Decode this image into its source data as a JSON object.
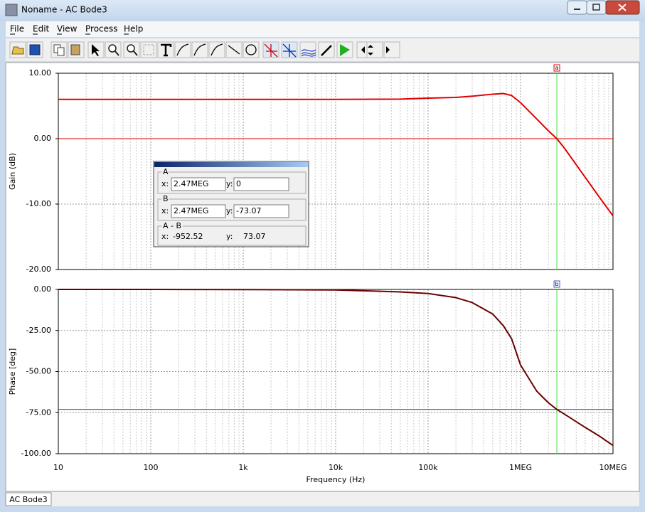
{
  "window": {
    "title": "Noname - AC Bode3"
  },
  "menu": [
    "File",
    "Edit",
    "View",
    "Process",
    "Help"
  ],
  "cursor_panel": {
    "a": {
      "label": "A",
      "x_label": "x:",
      "x": "2.47MEG",
      "y_label": "y:",
      "y": "0"
    },
    "b": {
      "label": "B",
      "x_label": "x:",
      "x": "2.47MEG",
      "y_label": "y:",
      "y": "-73.07"
    },
    "diff": {
      "label": "A - B",
      "x_label": "x:",
      "x": "-952.52",
      "y_label": "y:",
      "y": "73.07"
    }
  },
  "chart_data": [
    {
      "type": "line",
      "ylabel": "Gain (dB)",
      "log_x": true,
      "grid": true,
      "x": [
        10,
        100,
        1000,
        10000,
        50000,
        100000,
        200000,
        300000,
        500000,
        650000,
        800000,
        1000000,
        1500000,
        2000000,
        2470000,
        3000000,
        5000000,
        7000000,
        10000000
      ],
      "series": [
        {
          "color": "#e00000",
          "values": [
            6.0,
            6.0,
            6.0,
            6.0,
            6.05,
            6.2,
            6.3,
            6.5,
            6.8,
            6.9,
            6.6,
            5.5,
            3.0,
            1.2,
            0,
            -1.5,
            -5.9,
            -8.8,
            -11.8
          ]
        }
      ],
      "xlim": [
        10,
        10000000
      ],
      "xticks": [
        10,
        100,
        1000,
        10000,
        100000,
        1000000,
        10000000
      ],
      "ylim": [
        -20,
        10
      ],
      "yticks": [
        {
          "value": 10,
          "label": "10.00"
        },
        {
          "value": 0,
          "label": "0.00"
        },
        {
          "value": -10,
          "label": "-10.00"
        },
        {
          "value": -20,
          "label": "-20.00"
        }
      ],
      "cursor": {
        "label": "a",
        "x": 2470000,
        "y": 0,
        "line_color": "#e00000",
        "marker_color": "#e00000"
      }
    },
    {
      "type": "line",
      "ylabel": "Phase [deg]",
      "xlabel": "Frequency (Hz)",
      "log_x": true,
      "grid": true,
      "x": [
        10,
        100,
        1000,
        10000,
        50000,
        100000,
        200000,
        300000,
        500000,
        650000,
        800000,
        1000000,
        1500000,
        2000000,
        2470000,
        3000000,
        5000000,
        7000000,
        10000000
      ],
      "series": [
        {
          "color": "#6a0000",
          "values": [
            0,
            0,
            -0.1,
            -0.3,
            -1.5,
            -2.5,
            -5,
            -8,
            -15,
            -22,
            -30,
            -46,
            -62,
            -69,
            -73.07,
            -76,
            -84,
            -89,
            -95
          ]
        }
      ],
      "xlim": [
        10,
        10000000
      ],
      "xticks": [
        10,
        100,
        {
          "value": 1000,
          "label": "1k"
        },
        {
          "value": 10000,
          "label": "10k"
        },
        {
          "value": 100000,
          "label": "100k"
        },
        {
          "value": 1000000,
          "label": "1MEG"
        },
        {
          "value": 10000000,
          "label": "10MEG"
        }
      ],
      "ylim": [
        -100,
        0
      ],
      "yticks": [
        {
          "value": 0,
          "label": "0.00"
        },
        {
          "value": -25,
          "label": "-25.00"
        },
        {
          "value": -50,
          "label": "-50.00"
        },
        {
          "value": -75,
          "label": "-75.00"
        },
        {
          "value": -100,
          "label": "-100.00"
        }
      ],
      "cursor": {
        "label": "b",
        "x": 2470000,
        "y": -73.07,
        "line_color": "#2a2ab0",
        "marker_color": "#3060d0"
      }
    }
  ],
  "tab": "AC Bode3"
}
